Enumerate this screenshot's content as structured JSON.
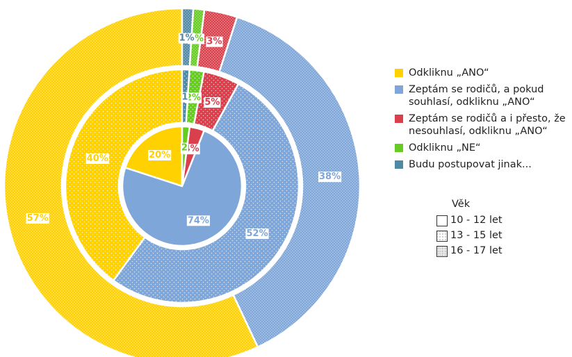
{
  "chart_data": {
    "type": "nested-donut",
    "categories": [
      "Odkliknu „ANO“",
      "Zeptám se rodičů, a pokud souhlasí, odkliknu „ANO“",
      "Zeptám se rodičů a i přesto, že nesouhlasí, odkliknu „ANO“",
      "Odkliknu „NE“",
      "Budu postupovat jinak..."
    ],
    "colors": [
      "#ffd100",
      "#7ea6d8",
      "#d9404c",
      "#66cc22",
      "#4f89a6"
    ],
    "legend_title": "Věk",
    "series": [
      {
        "name": "10 - 12 let",
        "values": [
          20,
          74,
          4,
          2,
          0
        ],
        "value_labels": [
          "20%",
          "74%",
          "4%",
          "2",
          null
        ]
      },
      {
        "name": "13 - 15 let",
        "values": [
          40,
          52,
          5,
          2,
          1
        ],
        "value_labels": [
          "40%",
          "52%",
          "5%",
          "2%",
          "1"
        ]
      },
      {
        "name": "16 - 17 let",
        "values": [
          57,
          38,
          3,
          1,
          1
        ],
        "value_labels": [
          "57%",
          "38%",
          "3%",
          "1%",
          "1%"
        ]
      }
    ]
  }
}
